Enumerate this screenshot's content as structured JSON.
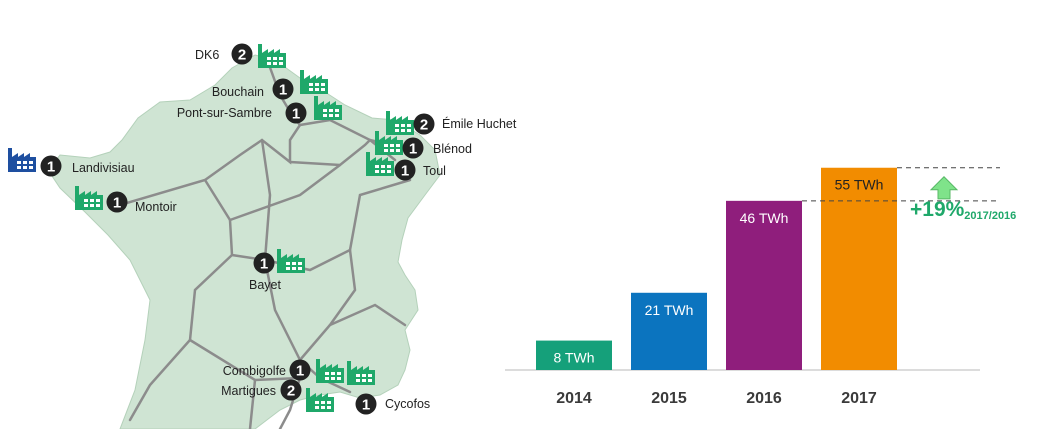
{
  "plants": [
    {
      "name": "DK6",
      "count": "2"
    },
    {
      "name": "Bouchain",
      "count": "1"
    },
    {
      "name": "Pont-sur-Sambre",
      "count": "1"
    },
    {
      "name": "Émile Huchet",
      "count": "2"
    },
    {
      "name": "Blénod",
      "count": "1"
    },
    {
      "name": "Toul",
      "count": "1"
    },
    {
      "name": "Landivisiau",
      "count": "1",
      "status": "planned"
    },
    {
      "name": "Montoir",
      "count": "1"
    },
    {
      "name": "Bayet",
      "count": "1"
    },
    {
      "name": "Combigolfe",
      "count": "1"
    },
    {
      "name": "Martigues",
      "count": "2"
    },
    {
      "name": "Cycofos",
      "count": "1"
    }
  ],
  "colors": {
    "map_fill": "#cfe4d3",
    "pipeline": "#8c8c8c",
    "plant_icon": "#1fa86a",
    "plant_icon_planned": "#1e4fa0",
    "badge": "#222222"
  },
  "chart_data": {
    "type": "bar",
    "categories": [
      "2014",
      "2015",
      "2016",
      "2017"
    ],
    "values": [
      8,
      21,
      46,
      55
    ],
    "value_labels": [
      "8 TWh",
      "21 TWh",
      "46 TWh",
      "55 TWh"
    ],
    "colors": [
      "#15a07a",
      "#0b74bf",
      "#8f1e7c",
      "#f28c00"
    ],
    "label_colors": [
      "#ffffff",
      "#ffffff",
      "#ffffff",
      "#222222"
    ],
    "ylim": [
      0,
      62
    ],
    "grid": false,
    "annotation": {
      "text": "+19%",
      "subscript": "2017/2016",
      "arrow": "up",
      "arrow_color": "#7fe38a"
    }
  }
}
